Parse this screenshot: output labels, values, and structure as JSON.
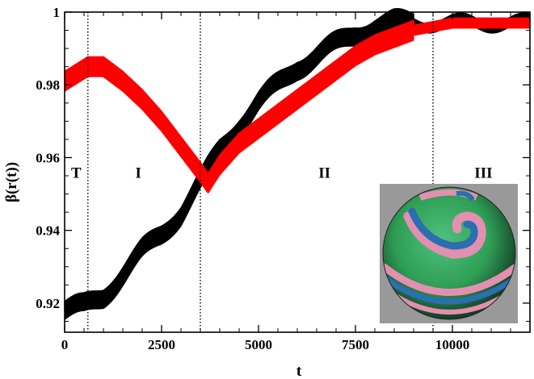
{
  "chart_data": {
    "type": "line",
    "xlabel": "t",
    "ylabel": "β(r(t))",
    "xlim": [
      0,
      12000
    ],
    "ylim": [
      0.912,
      1.0
    ],
    "xticks": [
      0,
      2500,
      5000,
      7500,
      10000
    ],
    "xtick_labels": [
      "0",
      "2500",
      "5000",
      "7500",
      "10000"
    ],
    "yticks": [
      0.92,
      0.94,
      0.96,
      0.98,
      1.0
    ],
    "ytick_labels": [
      "0.92",
      "0.94",
      "0.96",
      "0.98",
      "1"
    ],
    "grid": false,
    "vlines": [
      600,
      3500,
      9500
    ],
    "regions": [
      {
        "label": "T",
        "x": 300
      },
      {
        "label": "I",
        "x": 1900
      },
      {
        "label": "II",
        "x": 6700
      },
      {
        "label": "III",
        "x": 10800
      }
    ],
    "series": [
      {
        "color": "#000000",
        "x": [
          0,
          500,
          1000,
          1500,
          2000,
          2500,
          3000,
          3500,
          4000,
          4500,
          5000,
          5500,
          6000,
          6500,
          7000,
          7500,
          8000,
          8500,
          9000,
          9500,
          10000,
          11000,
          12000
        ],
        "y": [
          0.918,
          0.919,
          0.922,
          0.928,
          0.934,
          0.939,
          0.945,
          0.953,
          0.962,
          0.969,
          0.975,
          0.98,
          0.985,
          0.988,
          0.991,
          0.994,
          0.996,
          0.997,
          0.997,
          0.997,
          0.997,
          0.997,
          0.997
        ]
      },
      {
        "color": "#ff0000",
        "x": [
          0,
          300,
          600,
          1000,
          1500,
          2000,
          2500,
          3000,
          3500,
          3700,
          4000,
          4500,
          5000,
          5500,
          6000,
          6500,
          7000,
          7500,
          8000,
          8500,
          9000,
          9500,
          10000,
          11000,
          12000
        ],
        "y": [
          0.981,
          0.983,
          0.985,
          0.985,
          0.981,
          0.976,
          0.97,
          0.963,
          0.956,
          0.953,
          0.958,
          0.964,
          0.968,
          0.972,
          0.976,
          0.98,
          0.984,
          0.988,
          0.991,
          0.993,
          0.995,
          0.996,
          0.997,
          0.997,
          0.997
        ]
      }
    ]
  },
  "inset": {
    "background_color": "#999999",
    "sphere_colors": [
      "#2f9e55",
      "#2a6fb0",
      "#e38fb0",
      "#4fb87a",
      "#1b5f3a"
    ]
  }
}
